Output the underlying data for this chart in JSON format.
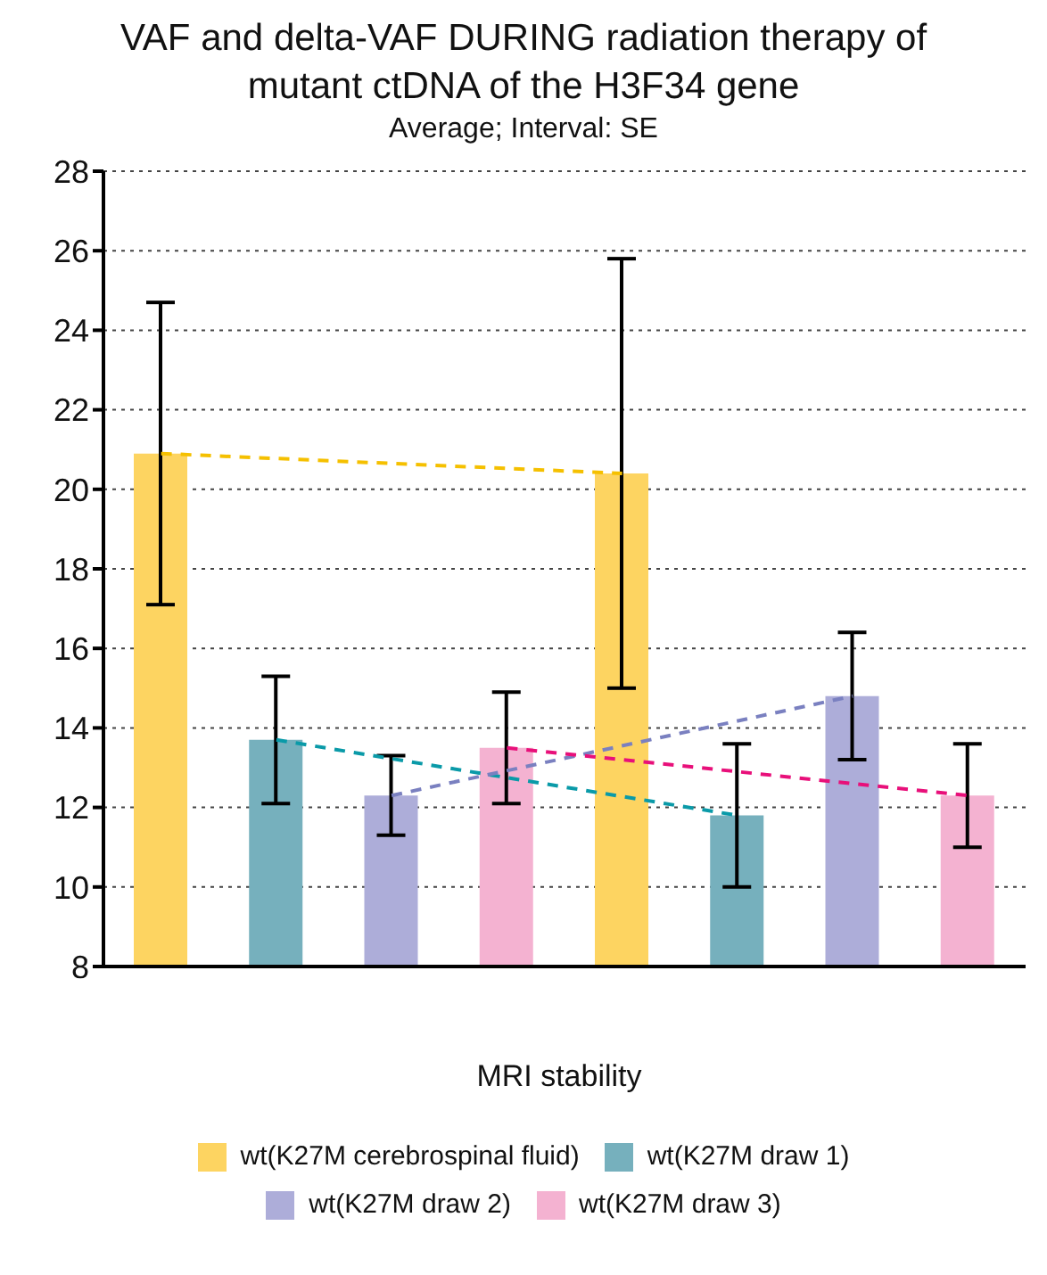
{
  "chart_data": {
    "type": "bar",
    "title": "VAF and delta-VAF DURING radiation therapy of mutant ctDNA of the H3F34 gene",
    "subtitle": "Average; Interval: SE",
    "xlabel": "MRI stability",
    "categories": [
      null,
      null,
      null,
      null,
      null,
      null,
      null,
      null
    ],
    "stacked": true,
    "series": [
      {
        "name": "wt(K27M cerebrospinal fluid)",
        "color": "#fdd461",
        "values": [
          20.9,
          null,
          null,
          null,
          20.4,
          null,
          null,
          null
        ],
        "errors": [
          3.8,
          null,
          null,
          null,
          5.4,
          null,
          null,
          null
        ]
      },
      {
        "name": "wt(K27M draw 1)",
        "color": "#76b0bd",
        "values": [
          null,
          13.7,
          null,
          null,
          null,
          11.8,
          null,
          null
        ],
        "errors": [
          null,
          1.6,
          null,
          null,
          null,
          1.8,
          null,
          null
        ]
      },
      {
        "name": "wt(K27M draw 2)",
        "color": "#adadd9",
        "values": [
          null,
          null,
          12.3,
          null,
          null,
          null,
          14.8,
          null
        ],
        "errors": [
          null,
          null,
          1.0,
          null,
          null,
          null,
          1.6,
          null
        ]
      },
      {
        "name": "wt(K27M draw 3)",
        "color": "#f4b2d1",
        "values": [
          null,
          null,
          null,
          13.5,
          null,
          null,
          null,
          12.3
        ],
        "errors": [
          null,
          null,
          null,
          1.4,
          null,
          null,
          null,
          1.3
        ]
      },
      {
        "type": "line",
        "color": "#f5c000",
        "line_style": "dashed",
        "values": [
          20.9,
          null,
          null,
          null,
          20.4,
          null,
          null,
          null
        ]
      },
      {
        "type": "line",
        "color": "#0a9aa8",
        "line_style": "dashed",
        "values": [
          null,
          13.7,
          null,
          null,
          null,
          11.8,
          null,
          null
        ]
      },
      {
        "type": "line",
        "color": "#7a80c0",
        "line_style": "dashed",
        "values": [
          null,
          null,
          12.3,
          null,
          null,
          null,
          14.8,
          null
        ]
      },
      {
        "type": "line",
        "color": "#e8107a",
        "line_style": "dashed",
        "values": [
          null,
          null,
          null,
          13.5,
          null,
          null,
          null,
          12.3
        ]
      }
    ],
    "ylim": [
      8,
      28
    ],
    "yticks": [
      8,
      10,
      12,
      14,
      16,
      18,
      20,
      22,
      24,
      26,
      28
    ],
    "grid": "y",
    "legend": "bottom",
    "marker": "none",
    "tick_labels": "y"
  }
}
